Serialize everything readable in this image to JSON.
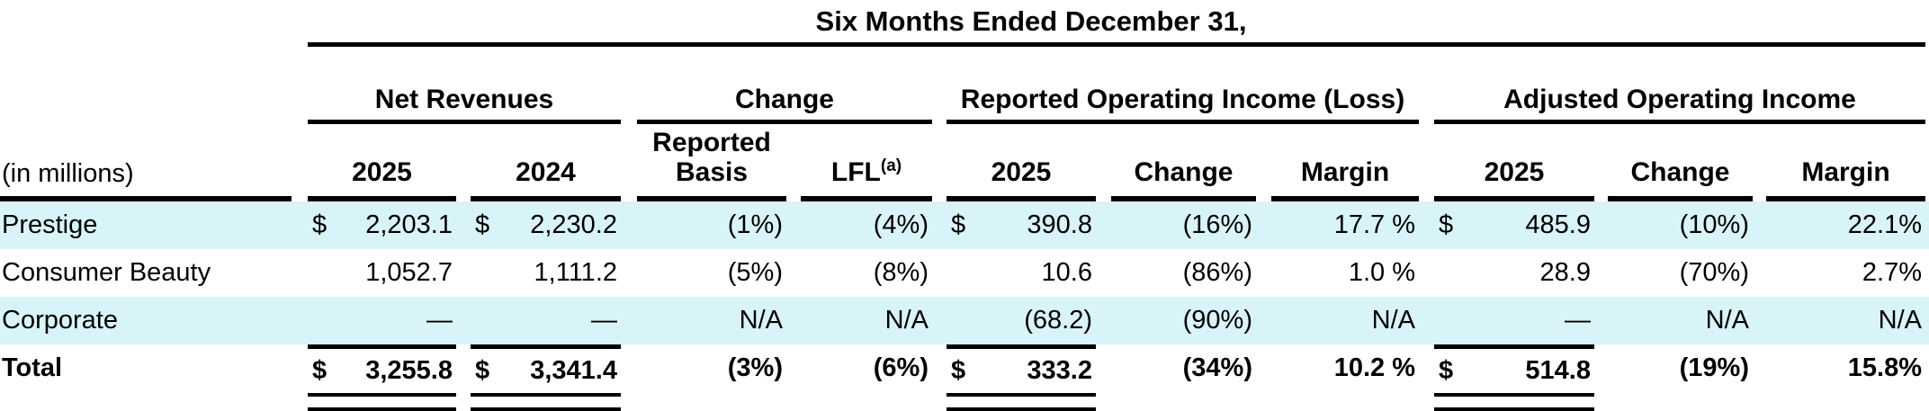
{
  "table": {
    "title": "Six Months Ended December 31,",
    "unit_label": "(in millions)",
    "colors": {
      "band": "#d9f4f9",
      "rule": "#000000",
      "text": "#000000",
      "background": "#ffffff"
    },
    "groups": [
      {
        "label": "Net Revenues",
        "span": 2
      },
      {
        "label": "Change",
        "span": 2
      },
      {
        "label": "Reported Operating Income (Loss)",
        "span": 3
      },
      {
        "label": "Adjusted Operating Income",
        "span": 3
      }
    ],
    "columns": [
      {
        "label": "2025"
      },
      {
        "label": "2024"
      },
      {
        "label": "Reported Basis"
      },
      {
        "label": "LFL",
        "sup": "(a)"
      },
      {
        "label": "2025"
      },
      {
        "label": "Change"
      },
      {
        "label": "Margin"
      },
      {
        "label": "2025"
      },
      {
        "label": "Change"
      },
      {
        "label": "Margin"
      }
    ],
    "total_rule_columns": [
      0,
      1,
      4,
      7
    ],
    "rows": [
      {
        "label": "Prestige",
        "shaded": true,
        "total": false,
        "cells": [
          {
            "prefix": "$",
            "value": "2,203.1"
          },
          {
            "prefix": "$",
            "value": "2,230.2"
          },
          {
            "prefix": "",
            "value": "(1%)"
          },
          {
            "prefix": "",
            "value": "(4%)"
          },
          {
            "prefix": "$",
            "value": "390.8"
          },
          {
            "prefix": "",
            "value": "(16%)"
          },
          {
            "prefix": "",
            "value": "17.7 %"
          },
          {
            "prefix": "$",
            "value": "485.9"
          },
          {
            "prefix": "",
            "value": "(10%)"
          },
          {
            "prefix": "",
            "value": "22.1%"
          }
        ]
      },
      {
        "label": "Consumer Beauty",
        "shaded": false,
        "total": false,
        "cells": [
          {
            "prefix": "",
            "value": "1,052.7"
          },
          {
            "prefix": "",
            "value": "1,111.2"
          },
          {
            "prefix": "",
            "value": "(5%)"
          },
          {
            "prefix": "",
            "value": "(8%)"
          },
          {
            "prefix": "",
            "value": "10.6"
          },
          {
            "prefix": "",
            "value": "(86%)"
          },
          {
            "prefix": "",
            "value": "1.0 %"
          },
          {
            "prefix": "",
            "value": "28.9"
          },
          {
            "prefix": "",
            "value": "(70%)"
          },
          {
            "prefix": "",
            "value": "2.7%"
          }
        ]
      },
      {
        "label": "Corporate",
        "shaded": true,
        "total": false,
        "cells": [
          {
            "prefix": "",
            "value": "—"
          },
          {
            "prefix": "",
            "value": "—"
          },
          {
            "prefix": "",
            "value": "N/A"
          },
          {
            "prefix": "",
            "value": "N/A"
          },
          {
            "prefix": "",
            "value": "(68.2)"
          },
          {
            "prefix": "",
            "value": "(90%)"
          },
          {
            "prefix": "",
            "value": "N/A"
          },
          {
            "prefix": "",
            "value": "—"
          },
          {
            "prefix": "",
            "value": "N/A"
          },
          {
            "prefix": "",
            "value": "N/A"
          }
        ]
      },
      {
        "label": "Total",
        "shaded": false,
        "total": true,
        "cells": [
          {
            "prefix": "$",
            "value": "3,255.8"
          },
          {
            "prefix": "$",
            "value": "3,341.4"
          },
          {
            "prefix": "",
            "value": "(3%)"
          },
          {
            "prefix": "",
            "value": "(6%)"
          },
          {
            "prefix": "$",
            "value": "333.2"
          },
          {
            "prefix": "",
            "value": "(34%)"
          },
          {
            "prefix": "",
            "value": "10.2 %"
          },
          {
            "prefix": "$",
            "value": "514.8"
          },
          {
            "prefix": "",
            "value": "(19%)"
          },
          {
            "prefix": "",
            "value": "15.8%"
          }
        ]
      }
    ]
  }
}
